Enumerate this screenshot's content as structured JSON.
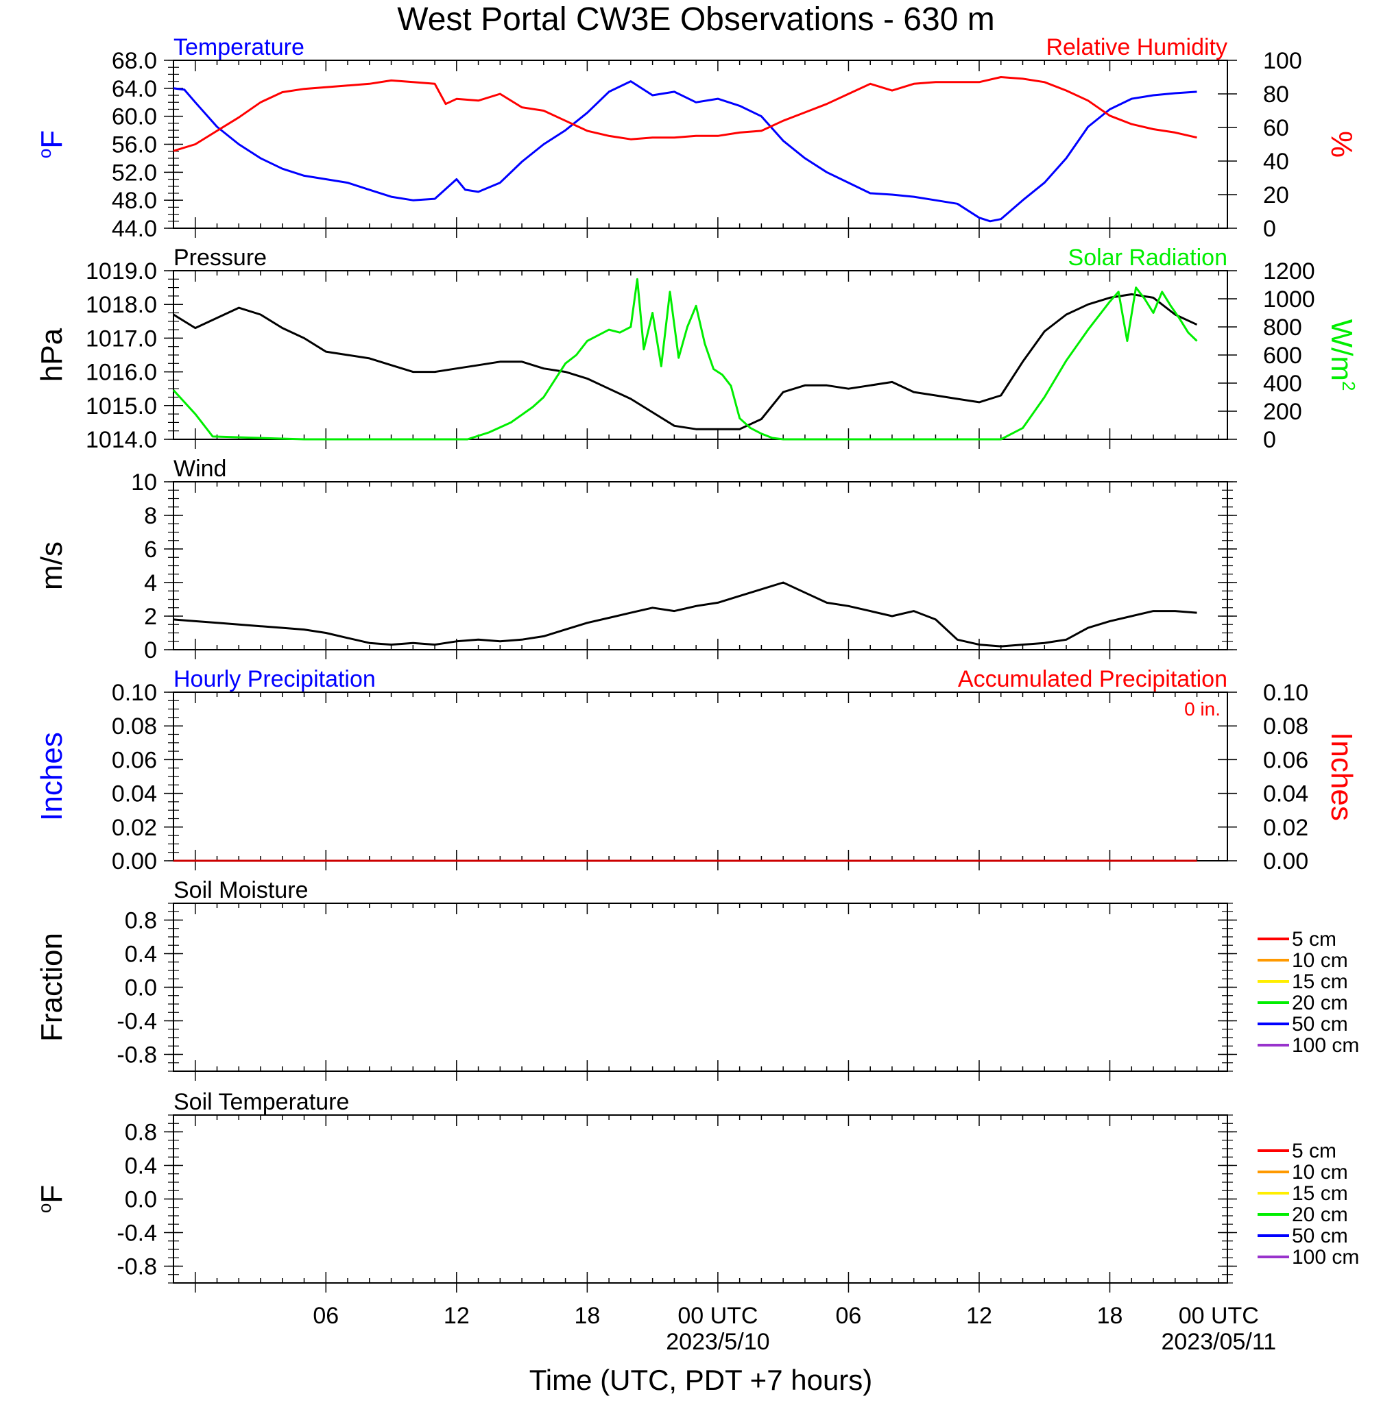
{
  "title": "West Portal CW3E Observations - 630 m",
  "x_axis": {
    "label": "Time (UTC, PDT +7 hours)",
    "ticks": [
      "06",
      "12",
      "18",
      "00 UTC",
      "06",
      "12",
      "18",
      "00 UTC"
    ],
    "date_labels": [
      "2023/5/10",
      "2023/05/11"
    ],
    "range_hours": [
      -1,
      47.4
    ]
  },
  "colors": {
    "temperature": "#0000ff",
    "humidity": "#ff0000",
    "pressure": "#000000",
    "solar": "#00ee00",
    "wind": "#000000",
    "barbs": "#ff0000",
    "hourly_precip": "#0000ff",
    "accum_precip": "#cc0000"
  },
  "chart_data": [
    {
      "type": "line",
      "title_left": "Temperature",
      "title_right": "Relative Humidity",
      "ylabel_left": "oF",
      "ylabel_right": "%",
      "ylim_left": [
        44.0,
        68.0
      ],
      "ylim_right": [
        0,
        100
      ],
      "yticks_left": [
        "44.0",
        "48.0",
        "52.0",
        "56.0",
        "60.0",
        "64.0",
        "68.0"
      ],
      "yticks_right": [
        "0",
        "20",
        "40",
        "60",
        "80",
        "100"
      ],
      "series": [
        {
          "name": "Temperature",
          "axis": "left",
          "x": [
            -1,
            -0.5,
            0,
            1,
            2,
            3,
            4,
            5,
            6,
            7,
            8,
            9,
            10,
            11,
            12,
            12.4,
            13,
            14,
            15,
            16,
            17,
            18,
            19,
            20,
            21,
            22,
            23,
            24,
            25,
            26,
            27,
            28,
            29,
            30,
            31,
            32,
            33,
            34,
            35,
            36,
            36.5,
            37,
            38,
            39,
            40,
            41,
            42,
            43,
            44,
            45,
            46
          ],
          "y": [
            64.0,
            63.8,
            62.0,
            58.5,
            56.0,
            54.0,
            52.5,
            51.5,
            51.0,
            50.5,
            49.5,
            48.5,
            48.0,
            48.2,
            51.0,
            49.5,
            49.2,
            50.5,
            53.5,
            56.0,
            58.0,
            60.5,
            63.5,
            65.0,
            63.0,
            63.5,
            62.0,
            62.5,
            61.5,
            60.0,
            56.5,
            54.0,
            52.0,
            50.5,
            49.0,
            48.8,
            48.5,
            48.0,
            47.5,
            45.5,
            45.0,
            45.3,
            48.0,
            50.5,
            54.0,
            58.5,
            61.0,
            62.5,
            63.0,
            63.3,
            63.5
          ]
        },
        {
          "name": "Relative Humidity",
          "axis": "right",
          "x": [
            -1,
            0,
            1,
            2,
            3,
            4,
            5,
            6,
            7,
            8,
            9,
            10,
            11,
            11.5,
            12,
            13,
            14,
            15,
            16,
            17,
            18,
            19,
            20,
            21,
            22,
            23,
            24,
            25,
            26,
            27,
            28,
            29,
            30,
            31,
            32,
            33,
            34,
            35,
            36,
            37,
            38,
            39,
            40,
            41,
            42,
            43,
            44,
            45,
            46
          ],
          "y": [
            46,
            50,
            58,
            66,
            75,
            81,
            83,
            84,
            85,
            86,
            88,
            87,
            86,
            74,
            77,
            76,
            80,
            72,
            70,
            64,
            58,
            55,
            53,
            54,
            54,
            55,
            55,
            57,
            58,
            64,
            69,
            74,
            80,
            86,
            82,
            86,
            87,
            87,
            87,
            90,
            89,
            87,
            82,
            76,
            67,
            62,
            59,
            57,
            54
          ]
        }
      ]
    },
    {
      "type": "line",
      "title_left": "Pressure",
      "title_right": "Solar Radiation",
      "ylabel_left": "hPa",
      "ylabel_right": "W/m2",
      "ylim_left": [
        1014.0,
        1019.0
      ],
      "ylim_right": [
        0,
        1200
      ],
      "yticks_left": [
        "1014.0",
        "1015.0",
        "1016.0",
        "1017.0",
        "1018.0",
        "1019.0"
      ],
      "yticks_right": [
        "0",
        "200",
        "400",
        "600",
        "800",
        "1000",
        "1200"
      ],
      "series": [
        {
          "name": "Pressure",
          "axis": "left",
          "x": [
            -1,
            0,
            1,
            2,
            3,
            4,
            5,
            6,
            7,
            8,
            9,
            10,
            11,
            12,
            13,
            14,
            15,
            16,
            17,
            18,
            19,
            20,
            21,
            22,
            23,
            24,
            25,
            26,
            27,
            28,
            29,
            30,
            31,
            32,
            33,
            34,
            35,
            36,
            37,
            38,
            39,
            40,
            41,
            42,
            43,
            44,
            45,
            46
          ],
          "y": [
            1017.7,
            1017.3,
            1017.6,
            1017.9,
            1017.7,
            1017.3,
            1017.0,
            1016.6,
            1016.5,
            1016.4,
            1016.2,
            1016.0,
            1016.0,
            1016.1,
            1016.2,
            1016.3,
            1016.3,
            1016.1,
            1016.0,
            1015.8,
            1015.5,
            1015.2,
            1014.8,
            1014.4,
            1014.3,
            1014.3,
            1014.3,
            1014.6,
            1015.4,
            1015.6,
            1015.6,
            1015.5,
            1015.6,
            1015.7,
            1015.4,
            1015.3,
            1015.2,
            1015.1,
            1015.3,
            1016.3,
            1017.2,
            1017.7,
            1018.0,
            1018.2,
            1018.3,
            1018.2,
            1017.7,
            1017.4
          ]
        },
        {
          "name": "Solar Radiation",
          "axis": "right",
          "x": [
            -1,
            0,
            0.8,
            5,
            10,
            11.5,
            12.5,
            13.5,
            14.5,
            15.5,
            16,
            16.5,
            17,
            17.5,
            18,
            18.5,
            19,
            19.5,
            20,
            20.3,
            20.6,
            21,
            21.4,
            21.8,
            22.2,
            22.6,
            23,
            23.4,
            23.8,
            24.2,
            24.6,
            25,
            25.5,
            26,
            26.5,
            27,
            30,
            33,
            34.5,
            36,
            37,
            38,
            39,
            40,
            41,
            42,
            42.4,
            42.8,
            43.2,
            43.6,
            44,
            44.4,
            44.8,
            45.2,
            45.6,
            46
          ],
          "y": [
            350,
            180,
            20,
            0,
            0,
            0,
            0,
            50,
            120,
            230,
            300,
            420,
            540,
            600,
            700,
            740,
            780,
            760,
            800,
            1140,
            640,
            900,
            520,
            1050,
            580,
            800,
            950,
            680,
            500,
            460,
            380,
            150,
            80,
            40,
            10,
            0,
            0,
            0,
            0,
            0,
            0,
            80,
            300,
            560,
            780,
            980,
            1050,
            700,
            1080,
            1000,
            900,
            1050,
            950,
            860,
            760,
            700
          ]
        }
      ]
    },
    {
      "type": "line",
      "title_left": "Wind",
      "ylabel_left": "m/s",
      "ylim_left": [
        0,
        10
      ],
      "yticks_left": [
        "0",
        "2",
        "4",
        "6",
        "8",
        "10"
      ],
      "series": [
        {
          "name": "Wind",
          "axis": "left",
          "x": [
            -1,
            0,
            1,
            2,
            3,
            4,
            5,
            6,
            7,
            8,
            9,
            10,
            11,
            12,
            13,
            14,
            15,
            16,
            17,
            18,
            19,
            20,
            21,
            22,
            23,
            24,
            25,
            26,
            27,
            28,
            29,
            30,
            31,
            32,
            33,
            34,
            35,
            36,
            37,
            38,
            39,
            40,
            41,
            42,
            43,
            44,
            45,
            46
          ],
          "y": [
            1.8,
            1.7,
            1.6,
            1.5,
            1.4,
            1.3,
            1.2,
            1.0,
            0.7,
            0.4,
            0.3,
            0.4,
            0.3,
            0.5,
            0.6,
            0.5,
            0.6,
            0.8,
            1.2,
            1.6,
            1.9,
            2.2,
            2.5,
            2.3,
            2.6,
            2.8,
            3.2,
            3.6,
            4.0,
            3.4,
            2.8,
            2.6,
            2.3,
            2.0,
            2.3,
            1.8,
            0.6,
            0.3,
            0.2,
            0.3,
            0.4,
            0.6,
            1.3,
            1.7,
            2.0,
            2.3,
            2.3,
            2.2
          ]
        }
      ]
    },
    {
      "type": "line",
      "title_left": "Hourly Precipitation",
      "title_right": "Accumulated Precipitation",
      "annotation": "0 in.",
      "ylabel_left": "Inches",
      "ylabel_right": "Inches",
      "ylim_left": [
        0.0,
        0.1
      ],
      "ylim_right": [
        0.0,
        0.1
      ],
      "yticks_left": [
        "0.00",
        "0.02",
        "0.04",
        "0.06",
        "0.08",
        "0.10"
      ],
      "yticks_right": [
        "0.00",
        "0.02",
        "0.04",
        "0.06",
        "0.08",
        "0.10"
      ],
      "series": [
        {
          "name": "Hourly Precipitation",
          "axis": "left",
          "x": [
            -1,
            46
          ],
          "y": [
            0,
            0
          ]
        },
        {
          "name": "Accumulated Precipitation",
          "axis": "right",
          "x": [
            -1,
            46
          ],
          "y": [
            0,
            0
          ]
        }
      ]
    },
    {
      "type": "line",
      "title_left": "Soil Moisture",
      "ylabel_left": "Fraction",
      "ylim_left": [
        -1.0,
        1.0
      ],
      "yticks_left": [
        "-0.8",
        "-0.4",
        "0.0",
        "0.4",
        "0.8"
      ],
      "legend": [
        "5 cm",
        "10 cm",
        "15 cm",
        "20 cm",
        "50 cm",
        "100 cm"
      ],
      "legend_colors": [
        "#ff0000",
        "#ff9900",
        "#ffee00",
        "#00ee00",
        "#0000ff",
        "#9933cc"
      ]
    },
    {
      "type": "line",
      "title_left": "Soil Temperature",
      "ylabel_left": "oF",
      "ylim_left": [
        -1.0,
        1.0
      ],
      "yticks_left": [
        "-0.8",
        "-0.4",
        "0.0",
        "0.4",
        "0.8"
      ],
      "legend": [
        "5 cm",
        "10 cm",
        "15 cm",
        "20 cm",
        "50 cm",
        "100 cm"
      ],
      "legend_colors": [
        "#ff0000",
        "#ff9900",
        "#ffee00",
        "#00ee00",
        "#0000ff",
        "#9933cc"
      ]
    }
  ]
}
